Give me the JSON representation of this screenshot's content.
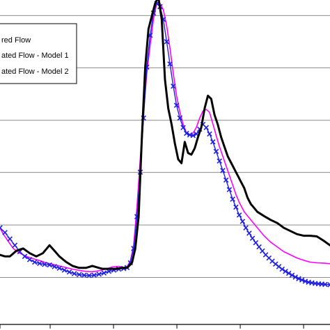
{
  "chart_data": {
    "type": "line",
    "title": "",
    "xlabel": "",
    "ylabel": "",
    "grid": "horizontal",
    "legend_position": "top-left",
    "xlim": [
      0,
      100
    ],
    "ylim": [
      0,
      100
    ],
    "y_gridlines": [
      13.9,
      30.4,
      46.9,
      63.3,
      79.8,
      96.2
    ],
    "legend": [
      {
        "label": "red Flow",
        "color": "#000000",
        "style": "line"
      },
      {
        "label": "ated Flow - Model 1",
        "color": "#ff00ff",
        "style": "line"
      },
      {
        "label": "ated Flow - Model 2",
        "color": "#1e1ee6",
        "style": "line-x-markers"
      }
    ],
    "series": [
      {
        "color": "#000000",
        "points": [
          [
            0,
            21
          ],
          [
            1.5,
            20.5
          ],
          [
            3,
            20.5
          ],
          [
            5,
            22.3
          ],
          [
            7,
            23
          ],
          [
            9,
            21.5
          ],
          [
            11,
            20.5
          ],
          [
            13,
            21.5
          ],
          [
            15,
            24
          ],
          [
            16.5,
            22.3
          ],
          [
            18,
            20.5
          ],
          [
            20,
            18.8
          ],
          [
            22,
            17.5
          ],
          [
            24,
            16.9
          ],
          [
            26,
            16.9
          ],
          [
            28,
            17.5
          ],
          [
            30,
            16.9
          ],
          [
            31,
            16.6
          ],
          [
            33,
            16.6
          ],
          [
            35,
            16.6
          ],
          [
            37,
            16.9
          ],
          [
            38.5,
            16.9
          ],
          [
            40,
            18.5
          ],
          [
            41,
            23
          ],
          [
            42,
            33
          ],
          [
            43,
            58
          ],
          [
            44,
            80
          ],
          [
            45,
            92
          ],
          [
            46,
            96
          ],
          [
            47,
            100
          ],
          [
            48,
            102
          ],
          [
            49,
            95
          ],
          [
            50,
            76
          ],
          [
            51,
            67
          ],
          [
            52,
            62
          ],
          [
            53,
            56
          ],
          [
            54,
            51
          ],
          [
            55,
            49.8
          ],
          [
            56,
            56.5
          ],
          [
            57,
            53
          ],
          [
            58,
            52.5
          ],
          [
            59,
            54.5
          ],
          [
            60,
            58
          ],
          [
            61,
            61
          ],
          [
            62,
            67
          ],
          [
            63,
            71
          ],
          [
            64,
            70
          ],
          [
            65,
            65
          ],
          [
            66,
            62
          ],
          [
            67,
            58
          ],
          [
            68,
            55
          ],
          [
            69,
            52
          ],
          [
            70,
            50
          ],
          [
            71,
            48
          ],
          [
            72,
            46
          ],
          [
            73,
            44
          ],
          [
            74,
            42
          ],
          [
            75,
            39
          ],
          [
            76,
            37
          ],
          [
            78,
            34.5
          ],
          [
            80,
            33.2
          ],
          [
            82,
            32
          ],
          [
            84,
            31
          ],
          [
            86,
            29.5
          ],
          [
            88,
            28.5
          ],
          [
            90,
            27.5
          ],
          [
            92,
            27
          ],
          [
            94,
            27
          ],
          [
            96,
            26.8
          ],
          [
            98,
            25.5
          ],
          [
            100,
            24
          ]
        ]
      },
      {
        "color": "#ff00ff",
        "points": [
          [
            0,
            29.5
          ],
          [
            1,
            27.5
          ],
          [
            2,
            26
          ],
          [
            3,
            24.5
          ],
          [
            4,
            23
          ],
          [
            6,
            21.5
          ],
          [
            8,
            20.5
          ],
          [
            10,
            19.8
          ],
          [
            12,
            19.2
          ],
          [
            14,
            18.5
          ],
          [
            16,
            18
          ],
          [
            18,
            17.5
          ],
          [
            20,
            17
          ],
          [
            22,
            16.5
          ],
          [
            24,
            16.1
          ],
          [
            26,
            15.8
          ],
          [
            28,
            15.7
          ],
          [
            30,
            16
          ],
          [
            32,
            16.5
          ],
          [
            34,
            17.2
          ],
          [
            36,
            17.4
          ],
          [
            37.5,
            17
          ],
          [
            38.5,
            17.3
          ],
          [
            39.5,
            19
          ],
          [
            40.5,
            24
          ],
          [
            41.5,
            36
          ],
          [
            42.5,
            51
          ],
          [
            43.5,
            66
          ],
          [
            44.5,
            78
          ],
          [
            45.5,
            87
          ],
          [
            46.5,
            95
          ],
          [
            47.5,
            100
          ],
          [
            48.5,
            100
          ],
          [
            49.5,
            98
          ],
          [
            50.5,
            93
          ],
          [
            51.5,
            86
          ],
          [
            52.5,
            78
          ],
          [
            53.5,
            71
          ],
          [
            54.5,
            66
          ],
          [
            55.5,
            62
          ],
          [
            56.5,
            59.3
          ],
          [
            57.5,
            58.8
          ],
          [
            58.5,
            59.3
          ],
          [
            59.5,
            61
          ],
          [
            60.5,
            64
          ],
          [
            61.5,
            66.2
          ],
          [
            62.5,
            66.7
          ],
          [
            63.5,
            65.8
          ],
          [
            64.5,
            62.2
          ],
          [
            65.5,
            58.5
          ],
          [
            66.5,
            55
          ],
          [
            67.5,
            52
          ],
          [
            68.5,
            49
          ],
          [
            69.5,
            46
          ],
          [
            70.5,
            43
          ],
          [
            71.5,
            40
          ],
          [
            72.5,
            37.5
          ],
          [
            74,
            34.5
          ],
          [
            76,
            32
          ],
          [
            78,
            29.5
          ],
          [
            80,
            27
          ],
          [
            82,
            25
          ],
          [
            84,
            23.5
          ],
          [
            86,
            22
          ],
          [
            88,
            21
          ],
          [
            90,
            20
          ],
          [
            92,
            19.3
          ],
          [
            94,
            18.7
          ],
          [
            96,
            18.5
          ],
          [
            98,
            18.4
          ],
          [
            100,
            18.2
          ]
        ]
      },
      {
        "color": "#1e1ee6",
        "markers": "x",
        "points": [
          [
            0,
            29.5
          ],
          [
            1.5,
            28
          ],
          [
            3,
            26
          ],
          [
            4.5,
            24
          ],
          [
            6,
            22
          ],
          [
            7.5,
            20.5
          ],
          [
            9,
            19.5
          ],
          [
            10.5,
            18.7
          ],
          [
            12,
            18.3
          ],
          [
            13.5,
            18
          ],
          [
            15,
            17.8
          ],
          [
            16.5,
            17.3
          ],
          [
            18,
            16.8
          ],
          [
            19.5,
            16.2
          ],
          [
            21,
            15.6
          ],
          [
            22.5,
            15.1
          ],
          [
            24,
            14.8
          ],
          [
            25.5,
            14.6
          ],
          [
            27,
            14.5
          ],
          [
            28.5,
            14.6
          ],
          [
            30,
            14.9
          ],
          [
            31.5,
            15.3
          ],
          [
            33,
            15.8
          ],
          [
            34.5,
            16.2
          ],
          [
            36,
            16.5
          ],
          [
            37.5,
            16.7
          ],
          [
            38.5,
            17
          ],
          [
            39.5,
            18.5
          ],
          [
            40.5,
            23
          ],
          [
            41.5,
            33
          ],
          [
            42.5,
            47
          ],
          [
            43.5,
            64
          ],
          [
            44.5,
            80
          ],
          [
            45.5,
            90
          ],
          [
            46.5,
            97
          ],
          [
            47.5,
            100
          ],
          [
            48.5,
            99
          ],
          [
            49.5,
            95
          ],
          [
            50.5,
            88
          ],
          [
            51.5,
            81
          ],
          [
            52.5,
            74
          ],
          [
            53.5,
            68
          ],
          [
            54.5,
            64
          ],
          [
            55.5,
            61
          ],
          [
            56.5,
            59.2
          ],
          [
            57.5,
            58.7
          ],
          [
            58.5,
            58.5
          ],
          [
            59.5,
            59
          ],
          [
            60.5,
            60.5
          ],
          [
            61.5,
            62
          ],
          [
            62.5,
            61
          ],
          [
            63.5,
            59
          ],
          [
            64.5,
            56.5
          ],
          [
            65.5,
            53.5
          ],
          [
            66.5,
            50.5
          ],
          [
            67.5,
            47.5
          ],
          [
            68.5,
            44.5
          ],
          [
            69.5,
            41.5
          ],
          [
            70.5,
            38.5
          ],
          [
            71.5,
            36
          ],
          [
            72.5,
            33.5
          ],
          [
            73.5,
            31.5
          ],
          [
            74.5,
            29.5
          ],
          [
            75.5,
            27.8
          ],
          [
            76.5,
            26.2
          ],
          [
            77.5,
            24.8
          ],
          [
            78.5,
            23.5
          ],
          [
            79.5,
            22.2
          ],
          [
            80.5,
            21
          ],
          [
            81.5,
            20
          ],
          [
            82.5,
            19
          ],
          [
            83.5,
            18.1
          ],
          [
            84.5,
            17.3
          ],
          [
            85.5,
            16.5
          ],
          [
            86.5,
            15.8
          ],
          [
            87.5,
            15.2
          ],
          [
            88.5,
            14.6
          ],
          [
            89.5,
            14
          ],
          [
            90.5,
            13.5
          ],
          [
            91.5,
            13.1
          ],
          [
            92.5,
            12.7
          ],
          [
            93.5,
            12.4
          ],
          [
            94.5,
            12.2
          ],
          [
            95.5,
            12
          ],
          [
            96.5,
            11.9
          ],
          [
            97.5,
            11.8
          ],
          [
            98.5,
            11.7
          ],
          [
            100,
            11.6
          ]
        ]
      }
    ]
  }
}
